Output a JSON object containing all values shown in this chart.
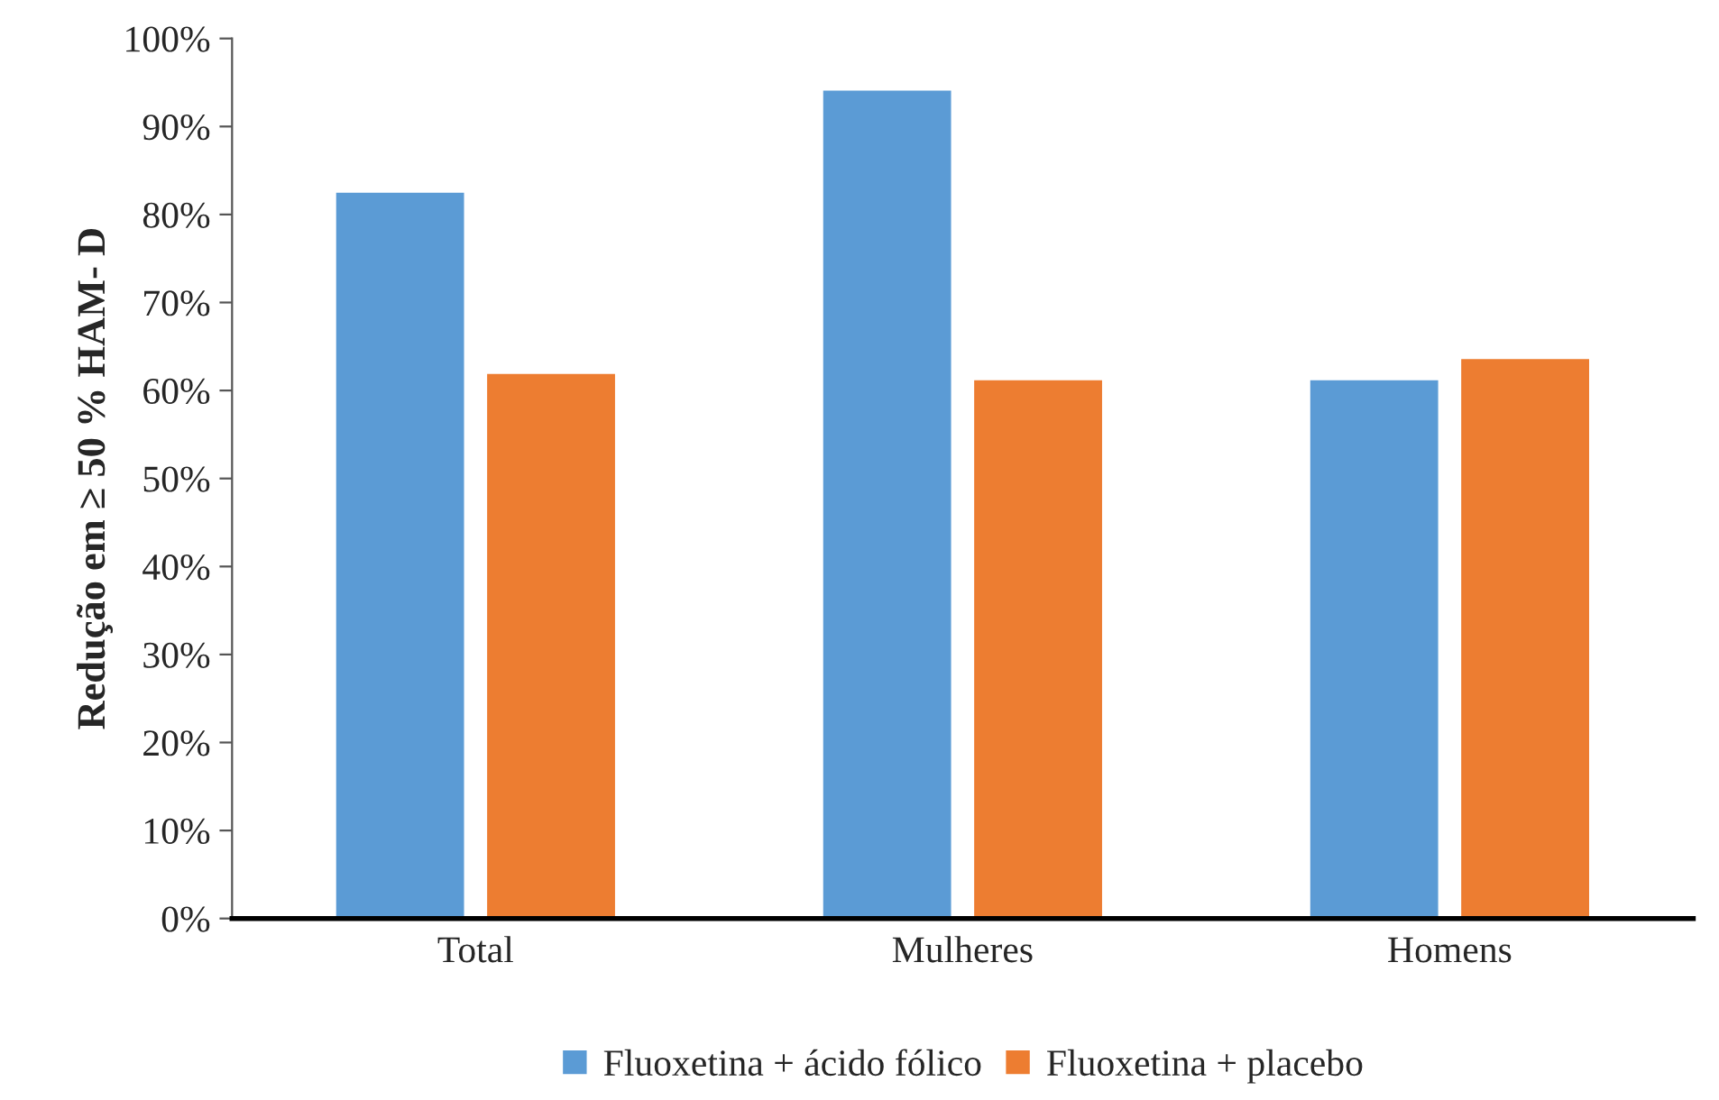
{
  "chart_data": {
    "type": "bar",
    "ylabel": "Redução em ≥ 50 % HAM- D",
    "categories": [
      "Total",
      "Mulheres",
      "Homens"
    ],
    "series": [
      {
        "name": "Fluoxetina + ácido fólico",
        "color": "#5b9bd5",
        "values": [
          82.4,
          94,
          61.1
        ]
      },
      {
        "name": "Fluoxetina + placebo",
        "color": "#ed7d31",
        "values": [
          61.8,
          61.1,
          63.5
        ]
      }
    ],
    "ylim": [
      0,
      100
    ],
    "yticks": [
      {
        "value": 0,
        "label": "0%"
      },
      {
        "value": 10,
        "label": "10%"
      },
      {
        "value": 20,
        "label": "20%"
      },
      {
        "value": 30,
        "label": "30%"
      },
      {
        "value": 40,
        "label": "40%"
      },
      {
        "value": 50,
        "label": "50%"
      },
      {
        "value": 60,
        "label": "60%"
      },
      {
        "value": 70,
        "label": "70%"
      },
      {
        "value": 80,
        "label": "80%"
      },
      {
        "value": 90,
        "label": "90%"
      },
      {
        "value": 100,
        "label": "100%"
      }
    ],
    "grid": false,
    "legend": "bottom"
  }
}
